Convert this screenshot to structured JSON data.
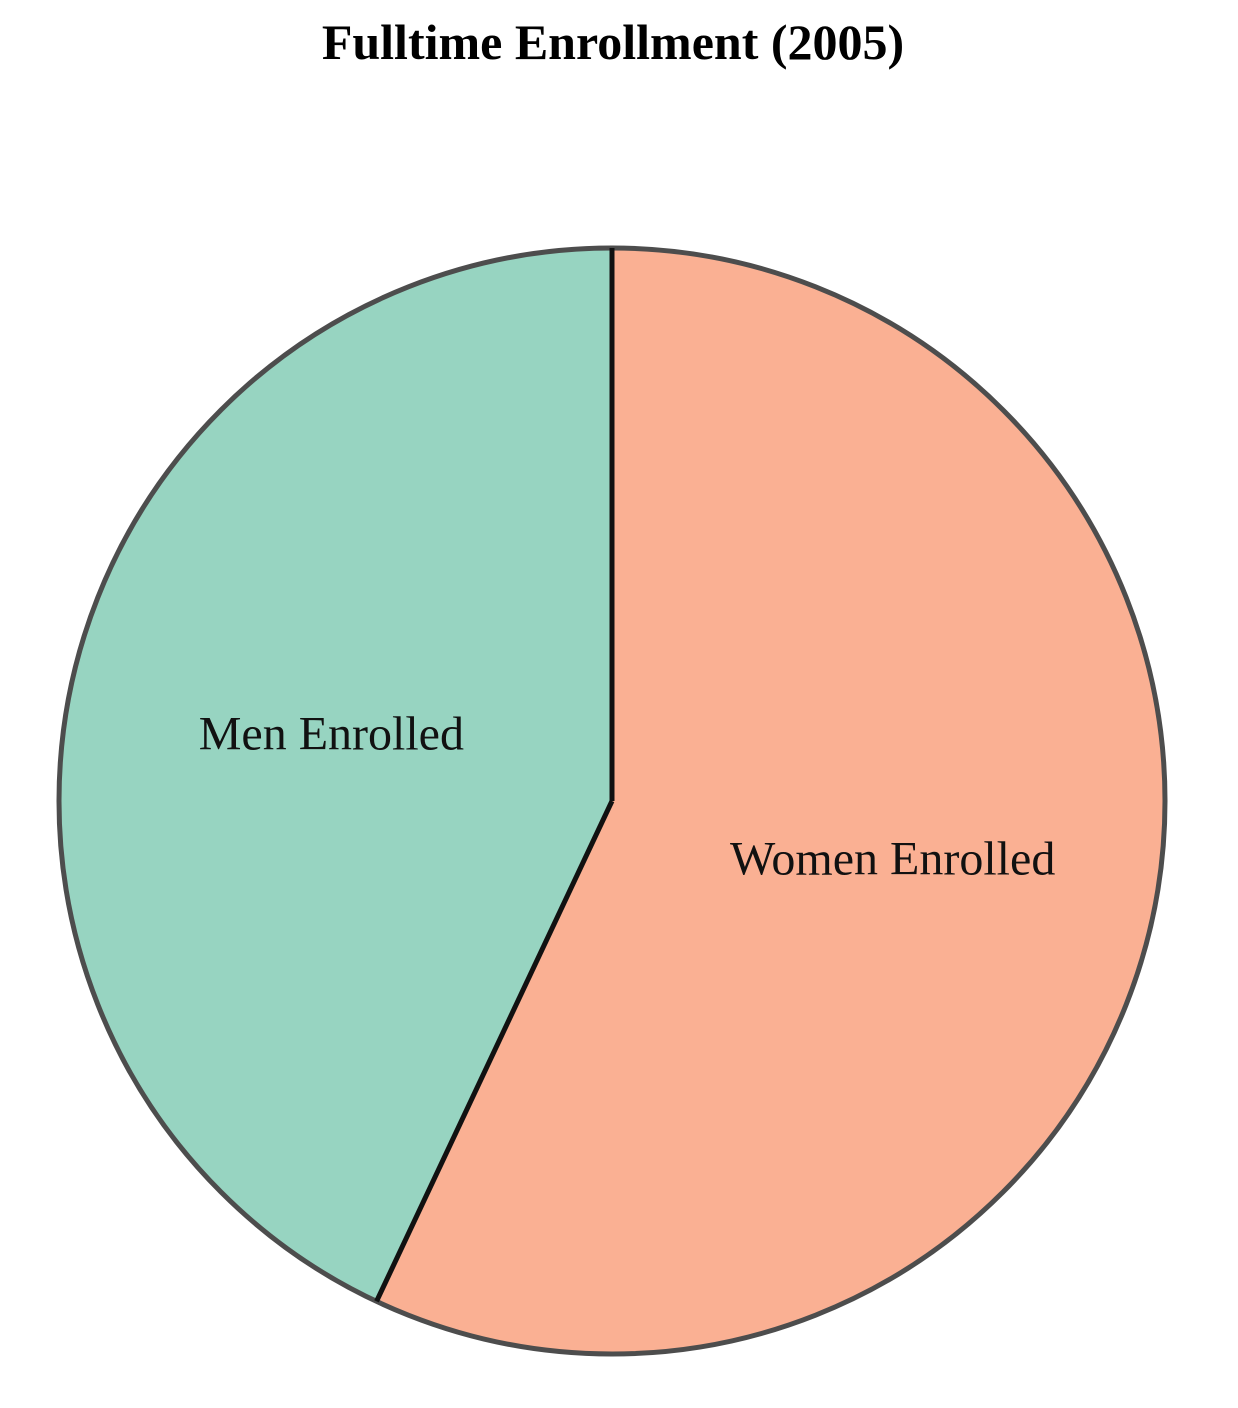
{
  "chart_data": {
    "type": "pie",
    "title": "Fulltime Enrollment (2005)",
    "categories": [
      "Men Enrolled",
      "Women Enrolled"
    ],
    "values": [
      43,
      57
    ],
    "unit": "percent",
    "colors": [
      "#97d4c1",
      "#fab093"
    ],
    "edge_color": "#4d4d4d",
    "divider_color": "#111111",
    "start": "12 o'clock",
    "direction": "counterclockwise",
    "legend": "none"
  }
}
